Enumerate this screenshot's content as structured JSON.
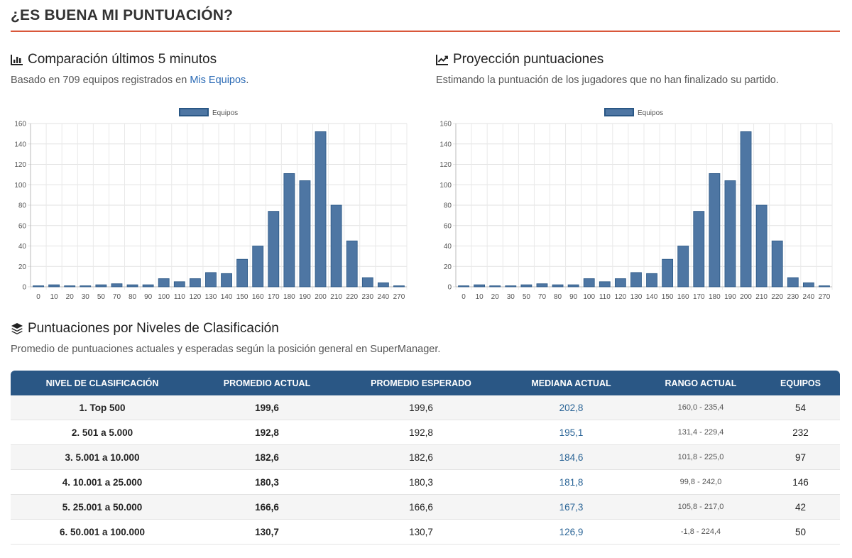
{
  "page": {
    "title": "¿ES BUENA MI PUNTUACIÓN?"
  },
  "comparison": {
    "title": "Comparación últimos 5 minutos",
    "desc_prefix": "Basado en 709 equipos registrados en ",
    "desc_link": "Mis Equipos",
    "desc_suffix": ".",
    "icon": "bar-chart-icon"
  },
  "projection": {
    "title": "Proyección puntuaciones",
    "desc": "Estimando la puntuación de los jugadores que no han finalizado su partido.",
    "icon": "line-chart-icon"
  },
  "levels": {
    "title": "Puntuaciones por Niveles de Clasificación",
    "desc": "Promedio de puntuaciones actuales y esperadas según la posición general en SuperManager.",
    "icon": "layers-icon",
    "headers": [
      "NIVEL DE CLASIFICACIÓN",
      "PROMEDIO ACTUAL",
      "PROMEDIO ESPERADO",
      "MEDIANA ACTUAL",
      "RANGO ACTUAL",
      "EQUIPOS"
    ],
    "rows": [
      [
        "1. Top 500",
        "199,6",
        "199,6",
        "202,8",
        "160,0 - 235,4",
        "54"
      ],
      [
        "2. 501 a 5.000",
        "192,8",
        "192,8",
        "195,1",
        "131,4 - 229,4",
        "232"
      ],
      [
        "3. 5.001 a 10.000",
        "182,6",
        "182,6",
        "184,6",
        "101,8 - 225,0",
        "97"
      ],
      [
        "4. 10.001 a 25.000",
        "180,3",
        "180,3",
        "181,8",
        "99,8 - 242,0",
        "146"
      ],
      [
        "5. 25.001 a 50.000",
        "166,6",
        "166,6",
        "167,3",
        "105,8 - 217,0",
        "42"
      ],
      [
        "6. 50.001 a 100.000",
        "130,7",
        "130,7",
        "126,9",
        "-1,8 - 224,4",
        "50"
      ]
    ]
  },
  "colors": {
    "accent": "#d9573a",
    "bar": "#4e76a3",
    "bar_border": "#2a5785",
    "header": "#2a5785",
    "link": "#2a6ab5"
  },
  "chart_data": [
    {
      "type": "bar",
      "categories": [
        "0",
        "10",
        "20",
        "30",
        "50",
        "70",
        "80",
        "90",
        "100",
        "110",
        "120",
        "130",
        "140",
        "150",
        "160",
        "170",
        "180",
        "190",
        "200",
        "210",
        "220",
        "230",
        "240",
        "270"
      ],
      "series": [
        {
          "name": "Equipos",
          "values": [
            1,
            2,
            1,
            1,
            2,
            3,
            2,
            2,
            8,
            5,
            8,
            14,
            13,
            27,
            40,
            74,
            111,
            104,
            152,
            80,
            45,
            9,
            4,
            1
          ]
        }
      ],
      "yticks": [
        0,
        20,
        40,
        60,
        80,
        100,
        120,
        140,
        160
      ],
      "ylim": [
        0,
        160
      ],
      "legend": "top-center",
      "grid": true
    },
    {
      "type": "bar",
      "categories": [
        "0",
        "10",
        "20",
        "30",
        "50",
        "70",
        "80",
        "90",
        "100",
        "110",
        "120",
        "130",
        "140",
        "150",
        "160",
        "170",
        "180",
        "190",
        "200",
        "210",
        "220",
        "230",
        "240",
        "270"
      ],
      "series": [
        {
          "name": "Equipos",
          "values": [
            1,
            2,
            1,
            1,
            2,
            3,
            2,
            2,
            8,
            5,
            8,
            14,
            13,
            27,
            40,
            74,
            111,
            104,
            152,
            80,
            45,
            9,
            4,
            1
          ]
        }
      ],
      "yticks": [
        0,
        20,
        40,
        60,
        80,
        100,
        120,
        140,
        160
      ],
      "ylim": [
        0,
        160
      ],
      "legend": "top-center",
      "grid": true
    }
  ]
}
